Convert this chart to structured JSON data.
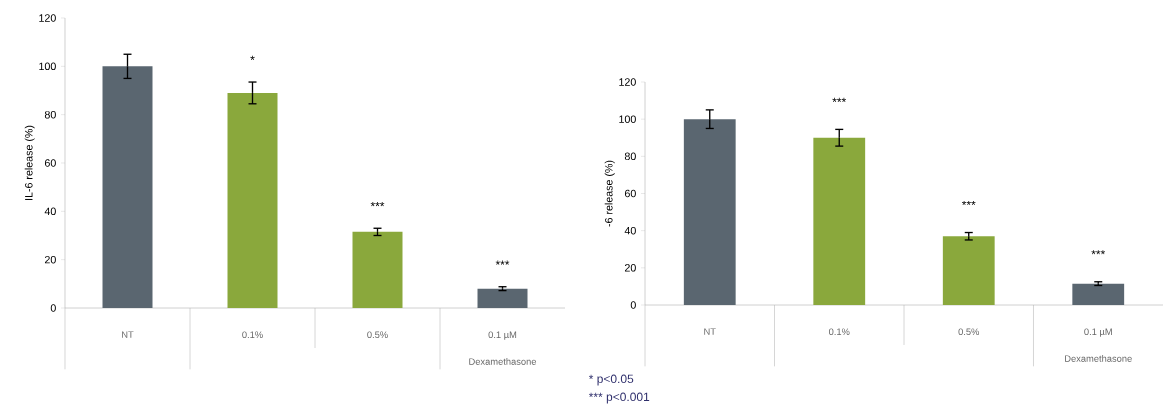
{
  "chart_data": [
    {
      "type": "bar",
      "ylabel": "IL-6 release (%)",
      "categories": [
        "NT",
        "0.1%",
        "0.5%",
        "0.1 µM"
      ],
      "values": [
        100,
        89,
        31.5,
        8
      ],
      "errors": [
        5,
        4.5,
        1.5,
        0.8
      ],
      "colors": [
        "#5a6670",
        "#8aa83c",
        "#8aa83c",
        "#5a6670"
      ],
      "ylim": [
        0,
        120
      ],
      "yticks": [
        0,
        20,
        40,
        60,
        80,
        100,
        120
      ],
      "annotations": [
        {
          "text": "*",
          "x": "0.1%",
          "y": 89
        },
        {
          "text": "***",
          "x": "0.5%",
          "y": 31.5
        },
        {
          "text": "***",
          "x": "0.1 µM",
          "y": 8
        },
        "Dexamethasone",
        "* p<0.05",
        "*** p<0.001"
      ]
    },
    {
      "type": "bar",
      "ylabel": "-6 release (%)",
      "categories": [
        "NT",
        "0.1%",
        "0.5%",
        "0.1 µM"
      ],
      "values": [
        100,
        90,
        37,
        11.5
      ],
      "errors": [
        5,
        4.5,
        2,
        1
      ],
      "colors": [
        "#5a6670",
        "#8aa83c",
        "#8aa83c",
        "#5a6670"
      ],
      "ylim": [
        0,
        120
      ],
      "yticks": [
        0,
        20,
        40,
        60,
        80,
        100,
        120
      ],
      "annotations": [
        {
          "text": "***",
          "x": "0.1%",
          "y": 90
        },
        {
          "text": "***",
          "x": "0.5%",
          "y": 37
        },
        {
          "text": "***",
          "x": "0.1 µM",
          "y": 11.5
        },
        "Dexamethasone"
      ]
    }
  ]
}
